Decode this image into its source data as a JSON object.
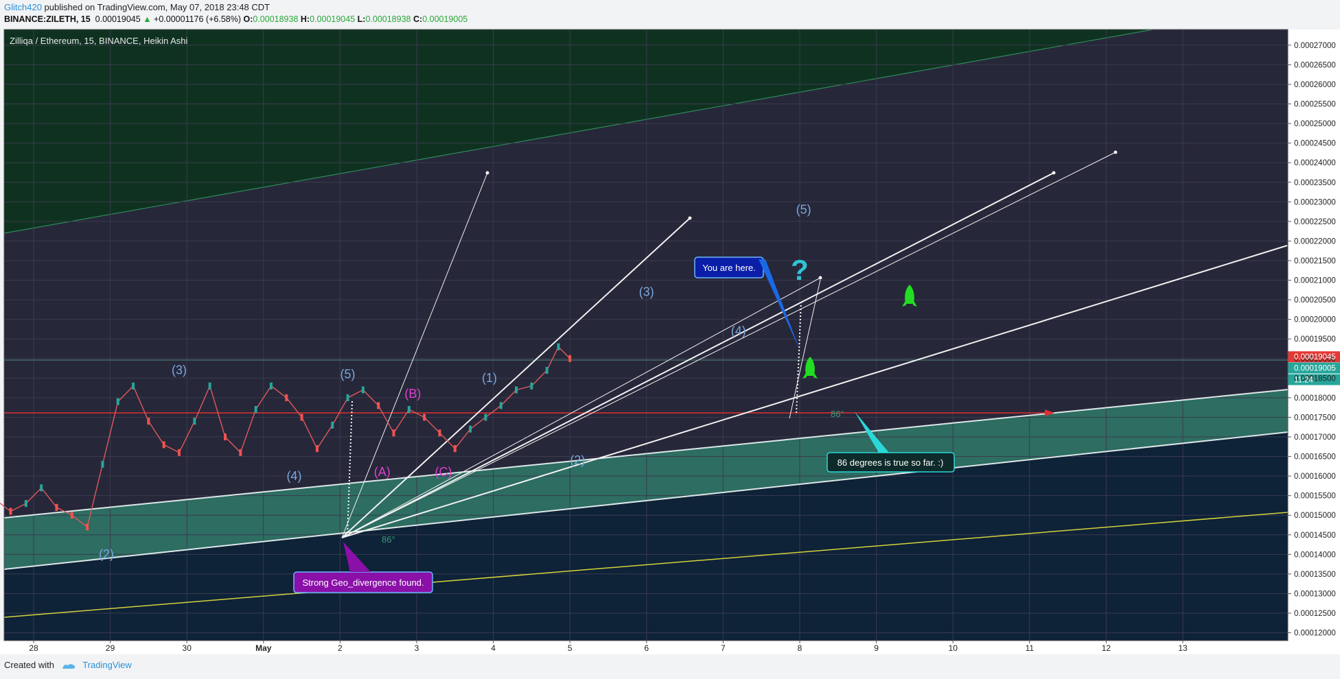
{
  "header": {
    "author": "Glitch420",
    "published": "published on TradingView.com, May 07, 2018 23:48 CDT",
    "symbol": "BINANCE:ZILETH, 15",
    "last": "0.00019045",
    "change": "+0.00001176 (+6.58%)",
    "o_label": "O:",
    "o": "0.00018938",
    "h_label": "H:",
    "h": "0.00019045",
    "l_label": "L:",
    "l": "0.00018938",
    "c_label": "C:",
    "c": "0.00019005"
  },
  "footer": {
    "created_with": "Created with",
    "brand": "TradingView"
  },
  "chart_data": {
    "type": "candlestick",
    "title": "Zilliqa / Ethereum, 15, BINANCE, Heikin Ashi",
    "ylim": [
      0.000118,
      0.000274
    ],
    "y_ticks": [
      "0.00027000",
      "0.00026500",
      "0.00026000",
      "0.00025500",
      "0.00025000",
      "0.00024500",
      "0.00024000",
      "0.00023500",
      "0.00023000",
      "0.00022500",
      "0.00022000",
      "0.00021500",
      "0.00021000",
      "0.00020500",
      "0.00020000",
      "0.00019500",
      "0.00019000",
      "0.00018500",
      "0.00018000",
      "0.00017500",
      "0.00017000",
      "0.00016500",
      "0.00016000",
      "0.00015500",
      "0.00015000",
      "0.00014500",
      "0.00014000",
      "0.00013500",
      "0.00013000",
      "0.00012500",
      "0.00012000"
    ],
    "x_ticks": [
      "28",
      "29",
      "30",
      "May",
      "2",
      "3",
      "4",
      "5",
      "6",
      "7",
      "8",
      "9",
      "10",
      "11",
      "12",
      "13"
    ],
    "price_labels": {
      "last": "0.00019045",
      "close": "0.00019005",
      "countdown": "11:24",
      "partial": "0.000"
    },
    "colors": {
      "up": "#26a69a",
      "down": "#ef5350",
      "upper_band": "#0f3220",
      "channel": "#2f7a6a",
      "lower_zone": "#0e2238",
      "mid": "#27273a"
    },
    "series": [
      {
        "name": "price",
        "x": [
          27.7,
          27.9,
          28.1,
          28.3,
          28.5,
          28.7,
          28.9,
          29.1,
          29.3,
          29.5,
          29.7,
          29.9,
          30.1,
          30.3,
          30.5,
          30.7,
          30.9,
          31.1,
          31.3,
          31.5,
          31.7,
          31.9,
          32.1,
          32.3,
          32.5,
          32.7,
          32.9,
          33.1,
          33.3,
          33.5,
          33.7,
          33.9,
          34.1,
          34.3,
          34.5,
          34.7,
          34.9,
          35.1,
          35.3,
          35.5,
          35.7,
          35.9,
          36.1,
          36.3,
          36.5,
          36.7,
          36.9,
          37.1,
          37.3,
          37.5,
          37.7,
          37.85,
          38.0
        ],
        "y": [
          0.000141,
          0.000138,
          0.000142,
          0.00015,
          0.000158,
          0.000163,
          0.000157,
          0.000152,
          0.000159,
          0.000163,
          0.000167,
          0.000166,
          0.00016,
          0.000157,
          0.000154,
          0.000151,
          0.000153,
          0.000157,
          0.000152,
          0.00015,
          0.000147,
          0.000163,
          0.000179,
          0.000183,
          0.000174,
          0.000168,
          0.000166,
          0.000174,
          0.000183,
          0.00017,
          0.000166,
          0.000177,
          0.000183,
          0.00018,
          0.000175,
          0.000167,
          0.000173,
          0.00018,
          0.000182,
          0.000178,
          0.000171,
          0.000177,
          0.000175,
          0.000171,
          0.000167,
          0.000172,
          0.000175,
          0.000178,
          0.000182,
          0.000183,
          0.000187,
          0.000193,
          0.00019
        ]
      }
    ],
    "wave_labels": [
      {
        "t": "(A)",
        "x": 27.7,
        "y": 0.000136,
        "c": "pink"
      },
      {
        "t": "(B)",
        "x": 28.6,
        "y": 0.000167,
        "c": "pink"
      },
      {
        "t": "(C)",
        "x": 29.05,
        "y": 0.000149,
        "c": "pink"
      },
      {
        "t": "(1)",
        "x": 29.5,
        "y": 0.000168,
        "c": "blue"
      },
      {
        "t": "(2)",
        "x": 31.95,
        "y": 0.000139,
        "c": "blue"
      },
      {
        "t": "(3)",
        "x": 32.9,
        "y": 0.000186,
        "c": "blue"
      },
      {
        "t": "(4)",
        "x": 34.4,
        "y": 0.000159,
        "c": "blue"
      },
      {
        "t": "(5)",
        "x": 35.1,
        "y": 0.000185,
        "c": "blue"
      },
      {
        "t": "(A)",
        "x": 35.55,
        "y": 0.00016,
        "c": "pink"
      },
      {
        "t": "(B)",
        "x": 35.95,
        "y": 0.00018,
        "c": "pink"
      },
      {
        "t": "(C)",
        "x": 36.35,
        "y": 0.00016,
        "c": "pink"
      },
      {
        "t": "(1)",
        "x": 36.95,
        "y": 0.000184,
        "c": "blue"
      },
      {
        "t": "(2)",
        "x": 38.1,
        "y": 0.000163,
        "c": "blue"
      },
      {
        "t": "(3)",
        "x": 39.0,
        "y": 0.000206,
        "c": "blue"
      },
      {
        "t": "(4)",
        "x": 40.2,
        "y": 0.000196,
        "c": "blue"
      },
      {
        "t": "(5)",
        "x": 41.05,
        "y": 0.000227,
        "c": "blue"
      }
    ],
    "callouts": {
      "you_are_here": "You are here.",
      "degrees": "86 degrees is true so far. :)",
      "divergence": "Strong Geo_divergence found.",
      "angle_1": "86°",
      "angle_2": "86°",
      "question": "?"
    },
    "grid": true
  }
}
